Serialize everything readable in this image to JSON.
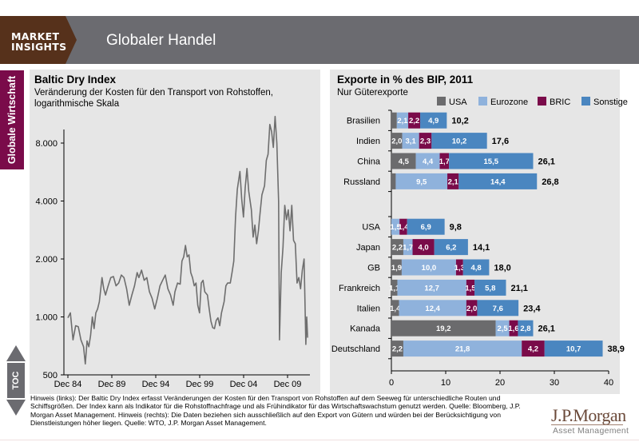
{
  "header": {
    "brand_line1": "MARKET",
    "brand_line2": "INSIGHTS",
    "title": "Globaler Handel"
  },
  "sidebar": {
    "section_label": "Globale Wirtschaft",
    "toc_label": "TOC"
  },
  "footnote": "Hinweis (links): Der Baltic Dry Index erfasst Veränderungen der Kosten für den Transport von Rohstoffen auf dem Seeweg für unterschiedliche Routen und Schiffsgrößen. Der Index kann als Indikator für die Rohstoffnachfrage und als Frühindikator für das Wirtschaftswachstum genutzt werden. Quelle: Bloomberg, J.P. Morgan Asset Management. Hinweis (rechts): Die Daten beziehen sich ausschließlich auf den Export von Gütern und würden bei der Berücksichtigung von Dienstleistungen höher liegen. Quelle: WTO, J.P. Morgan Asset Management.",
  "logo": {
    "name": "J.P.Morgan",
    "sub": "Asset Management"
  },
  "colors": {
    "header_bg": "#6b6b70",
    "brand_bg": "#56311b",
    "section_tab": "#7a0b4a",
    "line": "#6e6e6e",
    "usa": "#6b6b6d",
    "eurozone": "#8fb2dc",
    "bric": "#7a0b4a",
    "sonstige": "#4a86c0"
  },
  "chart_data": [
    {
      "type": "line",
      "title": "Baltic Dry Index",
      "subtitle_line1": "Veränderung der Kosten für den Transport von Rohstoffen,",
      "subtitle_line2": "logarithmische Skala",
      "yscale": "log",
      "ylim": [
        500,
        10000
      ],
      "yticks": [
        500,
        1000,
        2000,
        4000,
        8000
      ],
      "ytick_labels": [
        "500",
        "1.000",
        "2.000",
        "4.000",
        "8.000"
      ],
      "xlim": [
        1984.9,
        2012.3
      ],
      "xticks": [
        1984.92,
        1989.92,
        1994.92,
        1999.92,
        2004.92,
        2009.92
      ],
      "xtick_labels": [
        "Dec 84",
        "Dec 89",
        "Dec 94",
        "Dec 99",
        "Dec 04",
        "Dec 09"
      ],
      "series": [
        {
          "name": "Baltic Dry Index",
          "points": [
            [
              1984.92,
              990
            ],
            [
              1985.2,
              1050
            ],
            [
              1985.5,
              760
            ],
            [
              1985.8,
              900
            ],
            [
              1986.1,
              890
            ],
            [
              1986.4,
              760
            ],
            [
              1986.7,
              700
            ],
            [
              1986.9,
              570
            ],
            [
              1987.1,
              750
            ],
            [
              1987.3,
              700
            ],
            [
              1987.5,
              800
            ],
            [
              1987.7,
              1000
            ],
            [
              1987.9,
              870
            ],
            [
              1988.1,
              1050
            ],
            [
              1988.3,
              1100
            ],
            [
              1988.5,
              1200
            ],
            [
              1988.8,
              1600
            ],
            [
              1989.0,
              1400
            ],
            [
              1989.2,
              1300
            ],
            [
              1989.5,
              1450
            ],
            [
              1989.8,
              1600
            ],
            [
              1990.1,
              1620
            ],
            [
              1990.4,
              1450
            ],
            [
              1990.7,
              1500
            ],
            [
              1991.0,
              1650
            ],
            [
              1991.3,
              1600
            ],
            [
              1991.6,
              1400
            ],
            [
              1991.9,
              1150
            ],
            [
              1992.2,
              1300
            ],
            [
              1992.5,
              1450
            ],
            [
              1992.8,
              1700
            ],
            [
              1993.0,
              1600
            ],
            [
              1993.3,
              1750
            ],
            [
              1993.6,
              1550
            ],
            [
              1993.9,
              1600
            ],
            [
              1994.2,
              1350
            ],
            [
              1994.5,
              1250
            ],
            [
              1994.8,
              1100
            ],
            [
              1995.1,
              1250
            ],
            [
              1995.4,
              1450
            ],
            [
              1995.7,
              1550
            ],
            [
              1996.0,
              1650
            ],
            [
              1996.3,
              1400
            ],
            [
              1996.6,
              1300
            ],
            [
              1996.9,
              1150
            ],
            [
              1997.1,
              1350
            ],
            [
              1997.4,
              1500
            ],
            [
              1997.7,
              1480
            ],
            [
              1997.9,
              1950
            ],
            [
              1998.1,
              2050
            ],
            [
              1998.3,
              2350
            ],
            [
              1998.5,
              2050
            ],
            [
              1998.7,
              2100
            ],
            [
              1998.9,
              1700
            ],
            [
              1999.1,
              1600
            ],
            [
              1999.3,
              1450
            ],
            [
              1999.5,
              1500
            ],
            [
              1999.7,
              1150
            ],
            [
              1999.9,
              1050
            ],
            [
              2000.1,
              1500
            ],
            [
              2000.3,
              1550
            ],
            [
              2000.5,
              1350
            ],
            [
              2000.8,
              1300
            ],
            [
              2001.0,
              1100
            ],
            [
              2001.2,
              950
            ],
            [
              2001.4,
              880
            ],
            [
              2001.6,
              870
            ],
            [
              2001.8,
              960
            ],
            [
              2002.0,
              990
            ],
            [
              2002.2,
              900
            ],
            [
              2002.4,
              1050
            ],
            [
              2002.7,
              1200
            ],
            [
              2002.9,
              1450
            ],
            [
              2003.1,
              1500
            ],
            [
              2003.4,
              1500
            ],
            [
              2003.6,
              1700
            ],
            [
              2003.8,
              1950
            ],
            [
              2004.0,
              3300
            ],
            [
              2004.2,
              4600
            ],
            [
              2004.5,
              5700
            ],
            [
              2004.7,
              4100
            ],
            [
              2004.9,
              3300
            ],
            [
              2005.1,
              4700
            ],
            [
              2005.3,
              5900
            ],
            [
              2005.5,
              4500
            ],
            [
              2005.8,
              3600
            ],
            [
              2006.0,
              2600
            ],
            [
              2006.2,
              3000
            ],
            [
              2006.4,
              2400
            ],
            [
              2006.6,
              2800
            ],
            [
              2006.8,
              3500
            ],
            [
              2007.0,
              4300
            ],
            [
              2007.3,
              4800
            ],
            [
              2007.5,
              6500
            ],
            [
              2007.7,
              7000
            ],
            [
              2007.9,
              10000
            ],
            [
              2008.1,
              9200
            ],
            [
              2008.3,
              7600
            ],
            [
              2008.5,
              11000
            ],
            [
              2008.7,
              8000
            ],
            [
              2008.9,
              4000
            ],
            [
              2009.0,
              760
            ],
            [
              2009.2,
              1700
            ],
            [
              2009.4,
              2300
            ],
            [
              2009.6,
              3800
            ],
            [
              2009.8,
              3200
            ],
            [
              2010.0,
              3600
            ],
            [
              2010.2,
              2800
            ],
            [
              2010.4,
              3800
            ],
            [
              2010.6,
              2500
            ],
            [
              2010.8,
              2400
            ],
            [
              2011.0,
              1500
            ],
            [
              2011.2,
              1600
            ],
            [
              2011.4,
              1400
            ],
            [
              2011.6,
              1750
            ],
            [
              2011.8,
              2000
            ],
            [
              2011.9,
              1200
            ],
            [
              2012.0,
              720
            ],
            [
              2012.1,
              1000
            ],
            [
              2012.2,
              780
            ]
          ]
        }
      ]
    },
    {
      "type": "bar",
      "orientation": "horizontal",
      "stacked": true,
      "title": "Exporte in % des BIP, 2011",
      "subtitle": "Nur Güterexporte",
      "xlim": [
        0,
        40
      ],
      "xticks": [
        0,
        10,
        20,
        30,
        40
      ],
      "legend": [
        "USA",
        "Eurozone",
        "BRIC",
        "Sonstige"
      ],
      "legend_position": "top-right",
      "categories": [
        "Brasilien",
        "Indien",
        "China",
        "Russland",
        "",
        "USA",
        "Japan",
        "GB",
        "Frankreich",
        "Italien",
        "Kanada",
        "Deutschland"
      ],
      "series": [
        {
          "name": "USA",
          "values": [
            1.0,
            2.0,
            4.5,
            0.8,
            null,
            0.0,
            2.2,
            1.9,
            1.1,
            1.4,
            19.2,
            2.2
          ],
          "labels": [
            "",
            "2,0",
            "4,5",
            "",
            "",
            "",
            "2,2",
            "1,9",
            "1,1",
            "1,4",
            "19,2",
            "2,2"
          ]
        },
        {
          "name": "Eurozone",
          "values": [
            2.1,
            3.1,
            4.4,
            9.5,
            null,
            1.5,
            1.7,
            10.0,
            12.7,
            12.4,
            2.5,
            21.8
          ],
          "labels": [
            "2,1",
            "3,1",
            "4,4",
            "9,5",
            "",
            "1,5",
            "1,7",
            "10,0",
            "12,7",
            "12,4",
            "2,5",
            "21,8"
          ]
        },
        {
          "name": "BRIC",
          "values": [
            2.2,
            2.3,
            1.7,
            2.1,
            null,
            1.4,
            4.0,
            1.3,
            1.5,
            2.0,
            1.6,
            4.2
          ],
          "labels": [
            "2,2",
            "2,3",
            "1,7",
            "2,1",
            "",
            "1,4",
            "4,0",
            "1,3",
            "1,5",
            "2,0",
            "1,6",
            "4,2"
          ]
        },
        {
          "name": "Sonstige",
          "values": [
            4.9,
            10.2,
            15.5,
            14.4,
            null,
            6.9,
            6.2,
            4.8,
            5.8,
            7.6,
            2.8,
            10.7
          ],
          "labels": [
            "4,9",
            "10,2",
            "15,5",
            "14,4",
            "",
            "6,9",
            "6,2",
            "4,8",
            "5,8",
            "7,6",
            "2,8",
            "10,7"
          ]
        }
      ],
      "totals": [
        "10,2",
        "17,6",
        "26,1",
        "26,8",
        "",
        "9,8",
        "14,1",
        "18,0",
        "21,1",
        "23,4",
        "26,1",
        "38,9"
      ]
    }
  ]
}
